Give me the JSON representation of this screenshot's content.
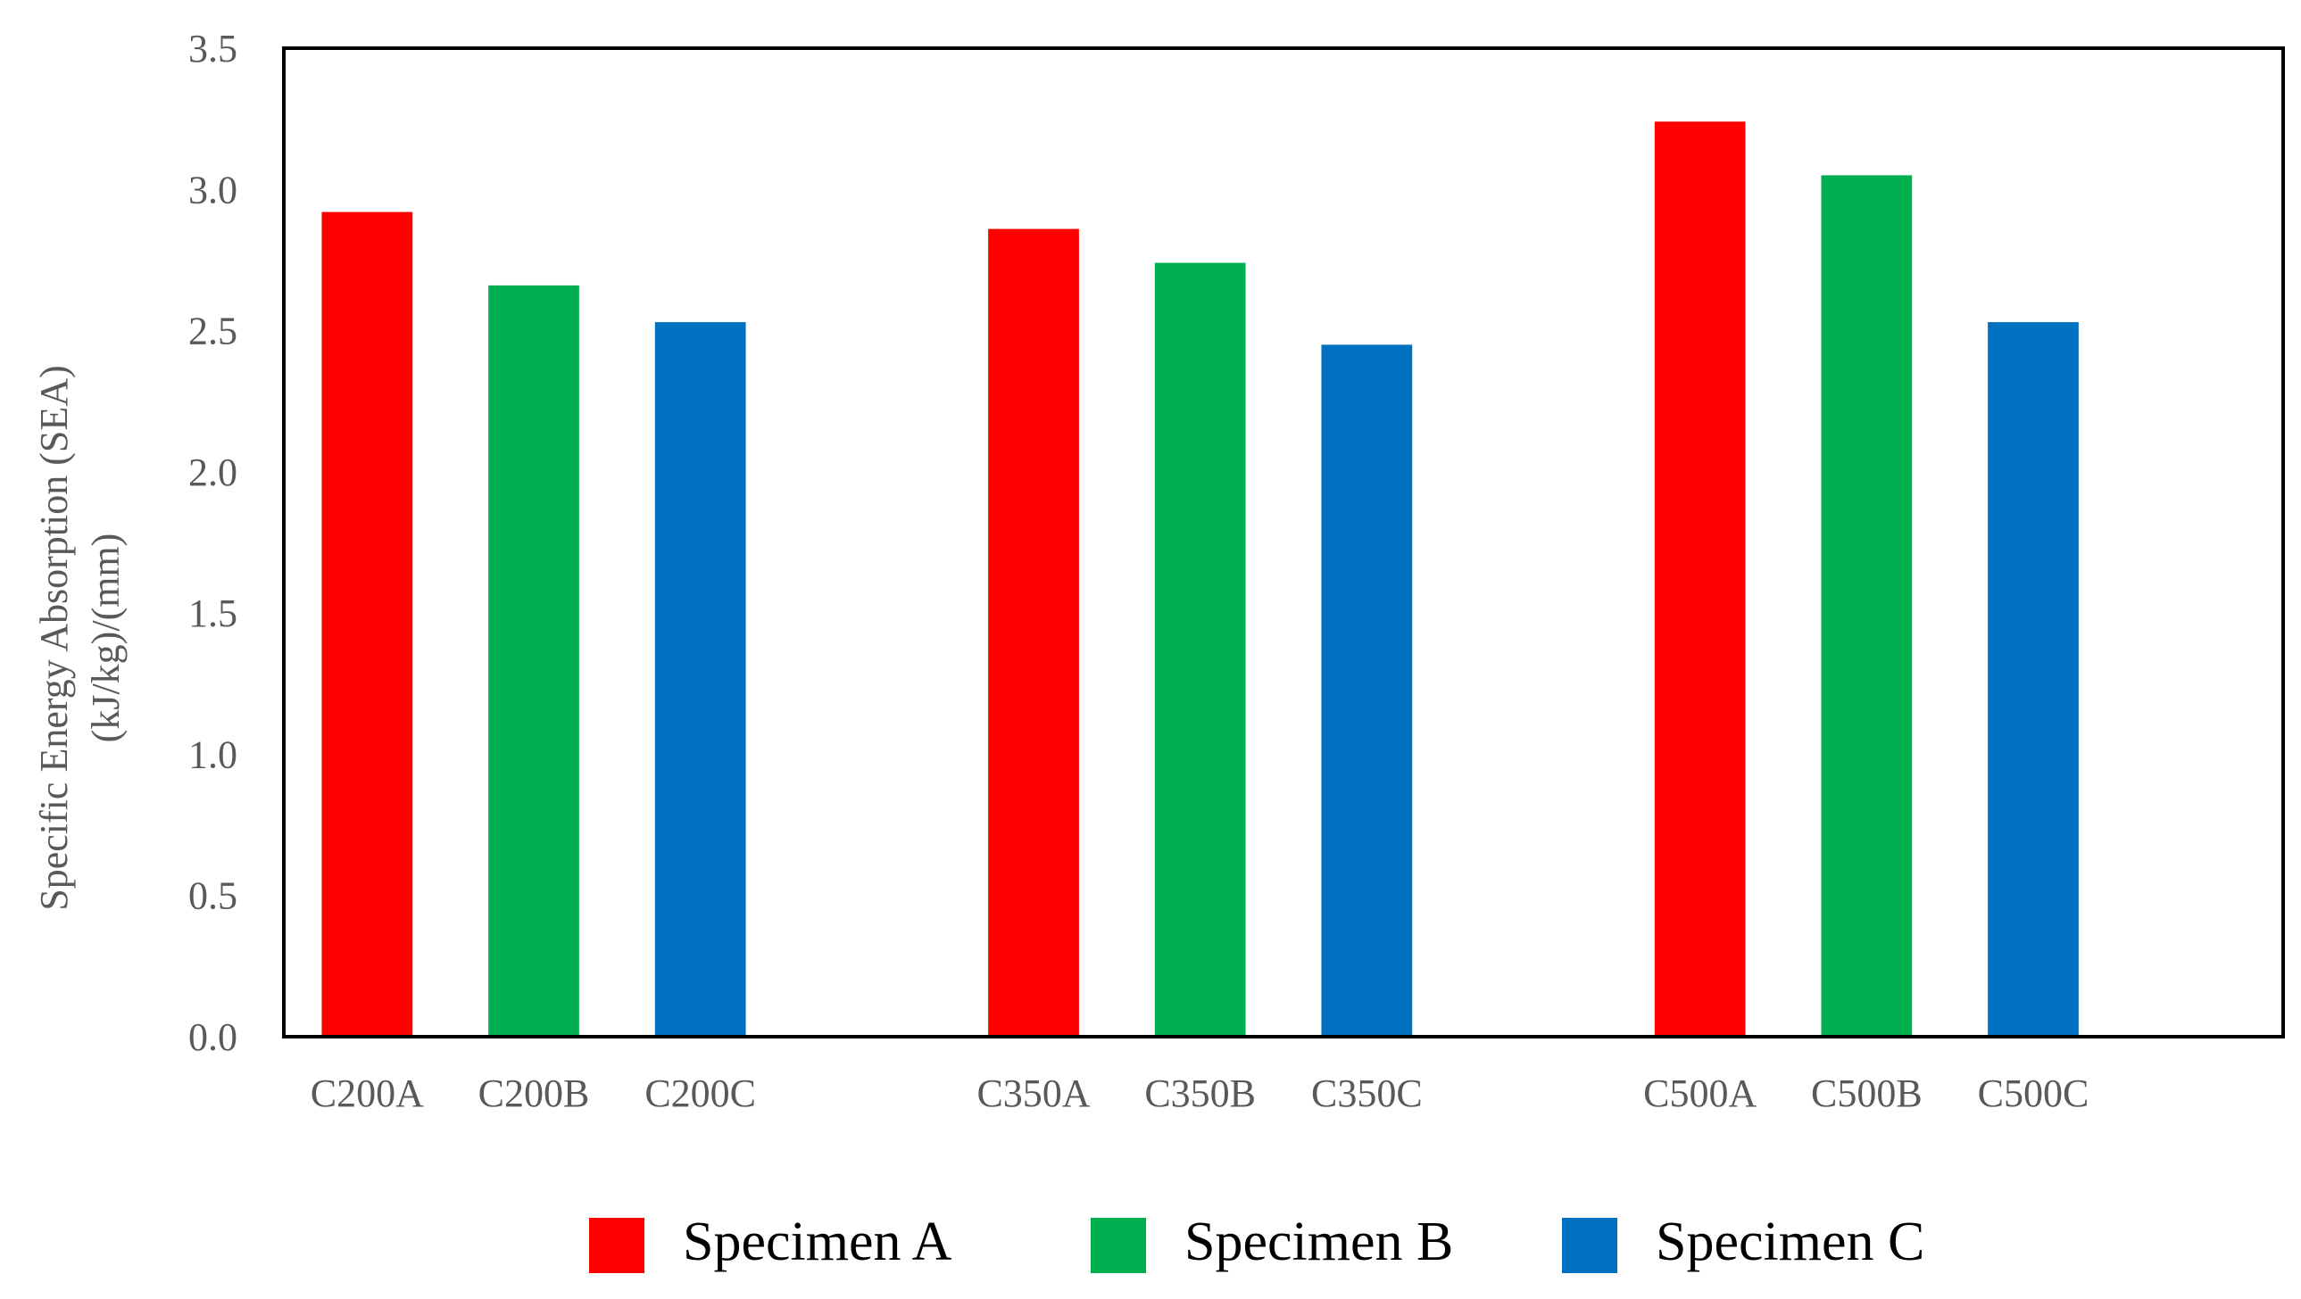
{
  "chart_data": {
    "type": "bar",
    "title": "",
    "ylabel_line1": "Specific Energy Absorption (SEA)",
    "ylabel_line2": "(kJ/kg)/(mm)",
    "xlabel": "",
    "ylim": [
      0,
      3.5
    ],
    "yticks": [
      "0.0",
      "0.5",
      "1.0",
      "1.5",
      "2.0",
      "2.5",
      "3.0",
      "3.5"
    ],
    "grid": false,
    "legend_position": "bottom",
    "series": [
      {
        "name": "Specimen A",
        "color": "#FF0000"
      },
      {
        "name": "Specimen B",
        "color": "#00B050"
      },
      {
        "name": "Specimen C",
        "color": "#0070C0"
      }
    ],
    "groups": [
      {
        "name": "C200",
        "bars": [
          {
            "label": "C200A",
            "series": 0,
            "value": 2.92
          },
          {
            "label": "C200B",
            "series": 1,
            "value": 2.66
          },
          {
            "label": "C200C",
            "series": 2,
            "value": 2.53
          }
        ]
      },
      {
        "name": "C350",
        "bars": [
          {
            "label": "C350A",
            "series": 0,
            "value": 2.86
          },
          {
            "label": "C350B",
            "series": 1,
            "value": 2.74
          },
          {
            "label": "C350C",
            "series": 2,
            "value": 2.45
          }
        ]
      },
      {
        "name": "C500",
        "bars": [
          {
            "label": "C500A",
            "series": 0,
            "value": 3.24
          },
          {
            "label": "C500B",
            "series": 1,
            "value": 3.05
          },
          {
            "label": "C500C",
            "series": 2,
            "value": 2.53
          }
        ]
      }
    ]
  }
}
